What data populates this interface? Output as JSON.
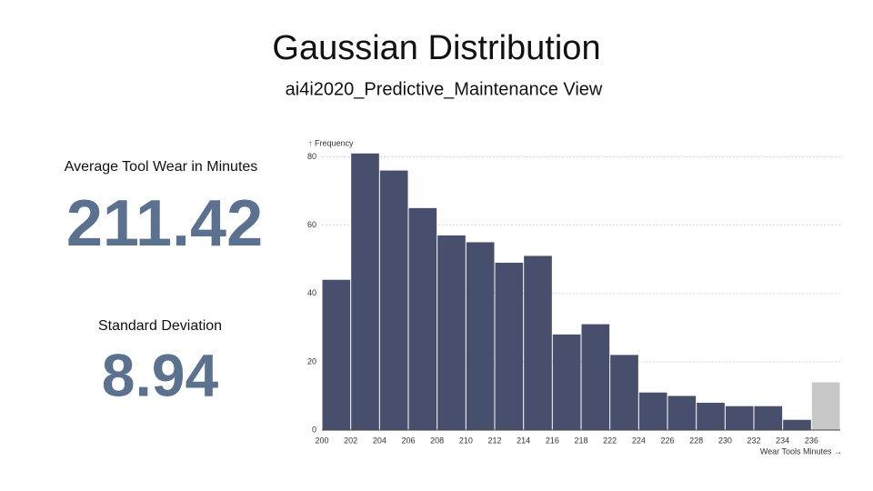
{
  "title": "Gaussian Distribution",
  "subtitle": "ai4i2020_Predictive_Maintenance View",
  "kpis": [
    {
      "label": "Average Tool Wear in Minutes",
      "value": "211.42"
    },
    {
      "label": "Standard Deviation",
      "value": "8.94"
    }
  ],
  "chart_data": {
    "type": "bar",
    "y_label": "↑ Frequency",
    "x_label": "Wear Tools Minutes →",
    "categories": [
      "200",
      "202",
      "204",
      "206",
      "208",
      "210",
      "212",
      "214",
      "216",
      "218",
      "222",
      "224",
      "226",
      "228",
      "230",
      "232",
      "234",
      "236"
    ],
    "values": [
      44,
      81,
      76,
      65,
      57,
      55,
      49,
      51,
      28,
      31,
      22,
      11,
      10,
      8,
      7,
      7,
      3,
      14
    ],
    "colors": [
      "#474f6c",
      "#474f6c",
      "#474f6c",
      "#474f6c",
      "#474f6c",
      "#474f6c",
      "#474f6c",
      "#474f6c",
      "#474f6c",
      "#474f6c",
      "#474f6c",
      "#474f6c",
      "#474f6c",
      "#474f6c",
      "#474f6c",
      "#474f6c",
      "#474f6c",
      "#c8c8c8"
    ],
    "ylim": [
      0,
      82
    ],
    "yticks": [
      0,
      20,
      40,
      60,
      80
    ],
    "grid": true
  }
}
